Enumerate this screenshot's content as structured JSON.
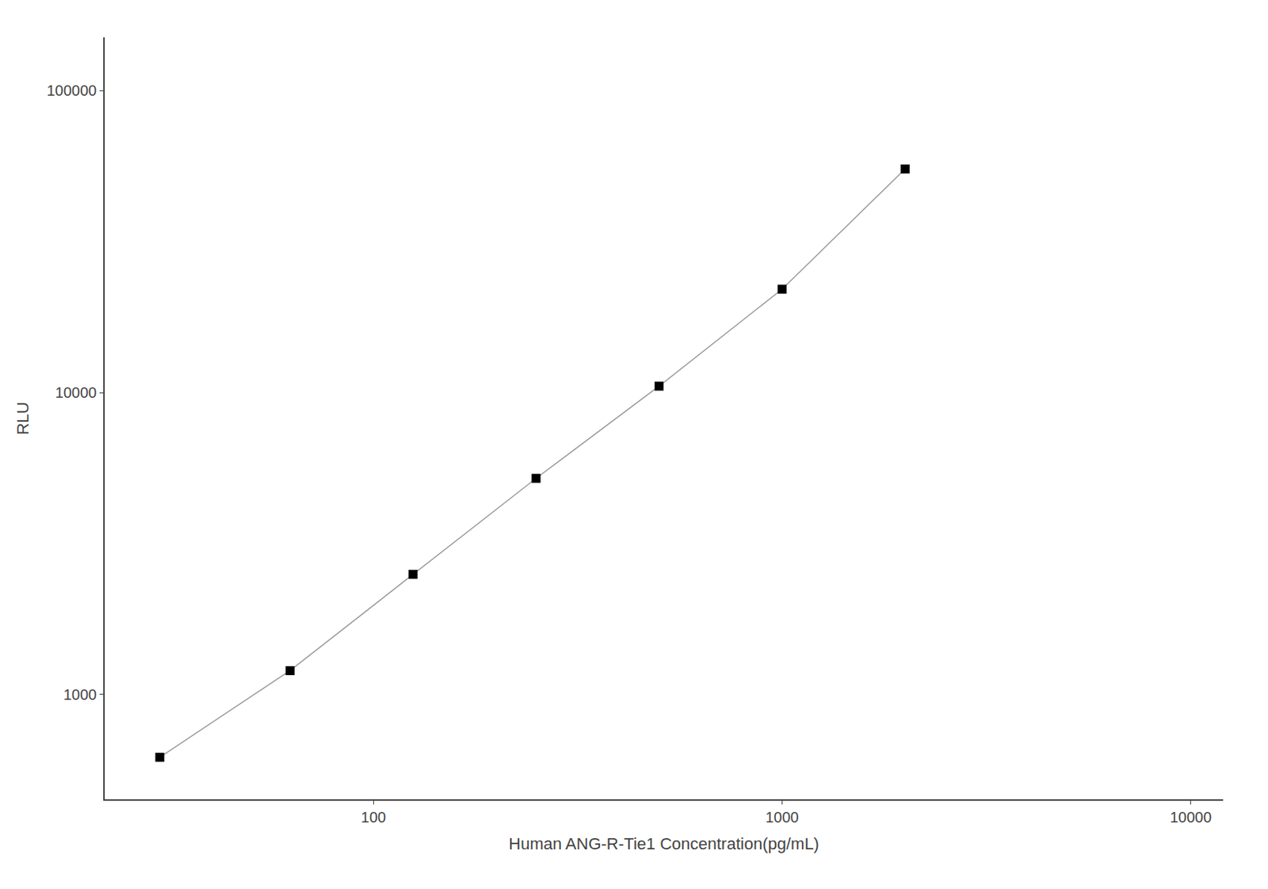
{
  "chart_data": {
    "type": "line",
    "x": [
      30,
      62.5,
      125,
      250,
      500,
      1000,
      2000
    ],
    "series": [
      {
        "type": "line",
        "color": "#999999",
        "values": [
          620,
          1200,
          2500,
          5200,
          10500,
          22000,
          55000
        ]
      },
      {
        "type": "scatter",
        "color": "#000000",
        "marker": "square",
        "values": [
          620,
          1200,
          2500,
          5200,
          10500,
          22000,
          55000
        ]
      }
    ],
    "xlabel": "Human ANG-R-Tie1 Concentration(pg/mL)",
    "ylabel": "RLU",
    "log": true,
    "xlim": [
      22,
      12000
    ],
    "ylim": [
      450,
      150000
    ],
    "xticks": [
      100,
      1000,
      10000
    ],
    "yticks": [
      1000,
      10000,
      100000
    ],
    "grid": false
  }
}
